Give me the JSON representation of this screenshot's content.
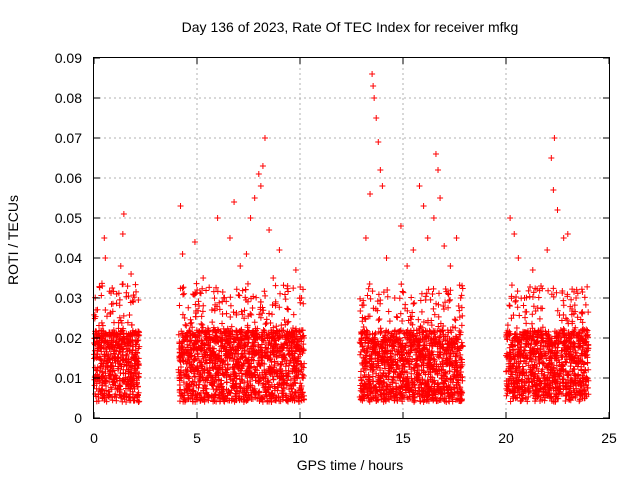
{
  "chart_data": {
    "type": "scatter",
    "title": "Day 136 of 2023, Rate Of TEC Index for receiver mfkg",
    "xlabel": "GPS time / hours",
    "ylabel": "ROTI / TECUs",
    "xlim": [
      0,
      25
    ],
    "ylim": [
      0,
      0.09
    ],
    "x_ticks": [
      "0",
      "5",
      "10",
      "15",
      "20",
      "25"
    ],
    "y_ticks": [
      "0",
      "0.01",
      "0.02",
      "0.03",
      "0.04",
      "0.05",
      "0.06",
      "0.07",
      "0.08",
      "0.09"
    ],
    "grid": true,
    "marker": "+",
    "colors": {
      "series": "#ff0000",
      "grid": "#b0b0b0",
      "axes": "#000000"
    },
    "series": [
      {
        "points": [
          [
            0.1,
            0.012
          ],
          [
            0.3,
            0.02
          ],
          [
            0.4,
            0.033
          ],
          [
            0.5,
            0.045
          ],
          [
            0.55,
            0.04
          ],
          [
            0.7,
            0.015
          ],
          [
            0.8,
            0.026
          ],
          [
            0.9,
            0.009
          ],
          [
            1.1,
            0.031
          ],
          [
            1.2,
            0.018
          ],
          [
            1.3,
            0.038
          ],
          [
            1.4,
            0.046
          ],
          [
            1.45,
            0.051
          ],
          [
            1.6,
            0.013
          ],
          [
            1.8,
            0.036
          ],
          [
            1.9,
            0.029
          ],
          [
            2.0,
            0.011
          ],
          [
            4.2,
            0.053
          ],
          [
            4.3,
            0.041
          ],
          [
            4.4,
            0.025
          ],
          [
            4.6,
            0.015
          ],
          [
            4.9,
            0.044
          ],
          [
            5.1,
            0.028
          ],
          [
            5.3,
            0.035
          ],
          [
            5.6,
            0.02
          ],
          [
            6.0,
            0.05
          ],
          [
            6.3,
            0.03
          ],
          [
            6.6,
            0.045
          ],
          [
            6.8,
            0.054
          ],
          [
            7.1,
            0.038
          ],
          [
            7.4,
            0.041
          ],
          [
            7.6,
            0.05
          ],
          [
            7.8,
            0.055
          ],
          [
            8.0,
            0.061
          ],
          [
            8.1,
            0.058
          ],
          [
            8.2,
            0.063
          ],
          [
            8.3,
            0.07
          ],
          [
            8.5,
            0.047
          ],
          [
            8.7,
            0.035
          ],
          [
            9.0,
            0.042
          ],
          [
            9.4,
            0.033
          ],
          [
            9.8,
            0.037
          ],
          [
            10.0,
            0.03
          ],
          [
            13.0,
            0.02
          ],
          [
            13.2,
            0.045
          ],
          [
            13.4,
            0.056
          ],
          [
            13.5,
            0.086
          ],
          [
            13.55,
            0.083
          ],
          [
            13.6,
            0.08
          ],
          [
            13.7,
            0.075
          ],
          [
            13.8,
            0.069
          ],
          [
            13.9,
            0.062
          ],
          [
            14.0,
            0.058
          ],
          [
            14.2,
            0.04
          ],
          [
            14.6,
            0.03
          ],
          [
            14.9,
            0.048
          ],
          [
            15.2,
            0.038
          ],
          [
            15.5,
            0.042
          ],
          [
            15.8,
            0.058
          ],
          [
            16.0,
            0.053
          ],
          [
            16.2,
            0.045
          ],
          [
            16.5,
            0.05
          ],
          [
            16.6,
            0.066
          ],
          [
            16.7,
            0.062
          ],
          [
            16.8,
            0.055
          ],
          [
            17.0,
            0.043
          ],
          [
            17.3,
            0.038
          ],
          [
            17.6,
            0.045
          ],
          [
            17.8,
            0.03
          ],
          [
            20.2,
            0.05
          ],
          [
            20.4,
            0.046
          ],
          [
            20.6,
            0.04
          ],
          [
            20.9,
            0.03
          ],
          [
            21.3,
            0.037
          ],
          [
            21.7,
            0.033
          ],
          [
            22.0,
            0.042
          ],
          [
            22.2,
            0.065
          ],
          [
            22.3,
            0.057
          ],
          [
            22.35,
            0.07
          ],
          [
            22.5,
            0.052
          ],
          [
            22.8,
            0.045
          ],
          [
            23.0,
            0.046
          ],
          [
            23.4,
            0.03
          ],
          [
            23.8,
            0.022
          ]
        ]
      }
    ]
  }
}
